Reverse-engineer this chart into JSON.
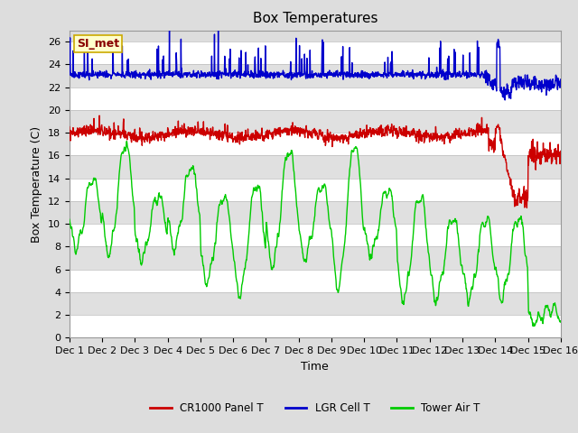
{
  "title": "Box Temperatures",
  "xlabel": "Time",
  "ylabel": "Box Temperature (C)",
  "ylim": [
    0,
    27
  ],
  "yticks": [
    0,
    2,
    4,
    6,
    8,
    10,
    12,
    14,
    16,
    18,
    20,
    22,
    24,
    26
  ],
  "xtick_labels": [
    "Dec 1",
    "Dec 2",
    "Dec 3",
    "Dec 4",
    "Dec 5",
    "Dec 6",
    "Dec 7",
    "Dec 8",
    "Dec 9",
    "Dec 10",
    "Dec 11",
    "Dec 12",
    "Dec 13",
    "Dec 14",
    "Dec 15",
    "Dec 16"
  ],
  "legend_labels": [
    "CR1000 Panel T",
    "LGR Cell T",
    "Tower Air T"
  ],
  "legend_colors": [
    "#cc0000",
    "#0000cc",
    "#00cc00"
  ],
  "watermark_text": "SI_met",
  "watermark_bg": "#ffffcc",
  "watermark_fg": "#880000",
  "watermark_edge": "#ccaa00",
  "fig_bg": "#dddddd",
  "plot_bg_light": "#ffffff",
  "plot_bg_dark": "#e0e0e0",
  "grid_color": "#cccccc",
  "title_fontsize": 11,
  "axis_fontsize": 9,
  "tick_fontsize": 8,
  "line_width": 1.0
}
